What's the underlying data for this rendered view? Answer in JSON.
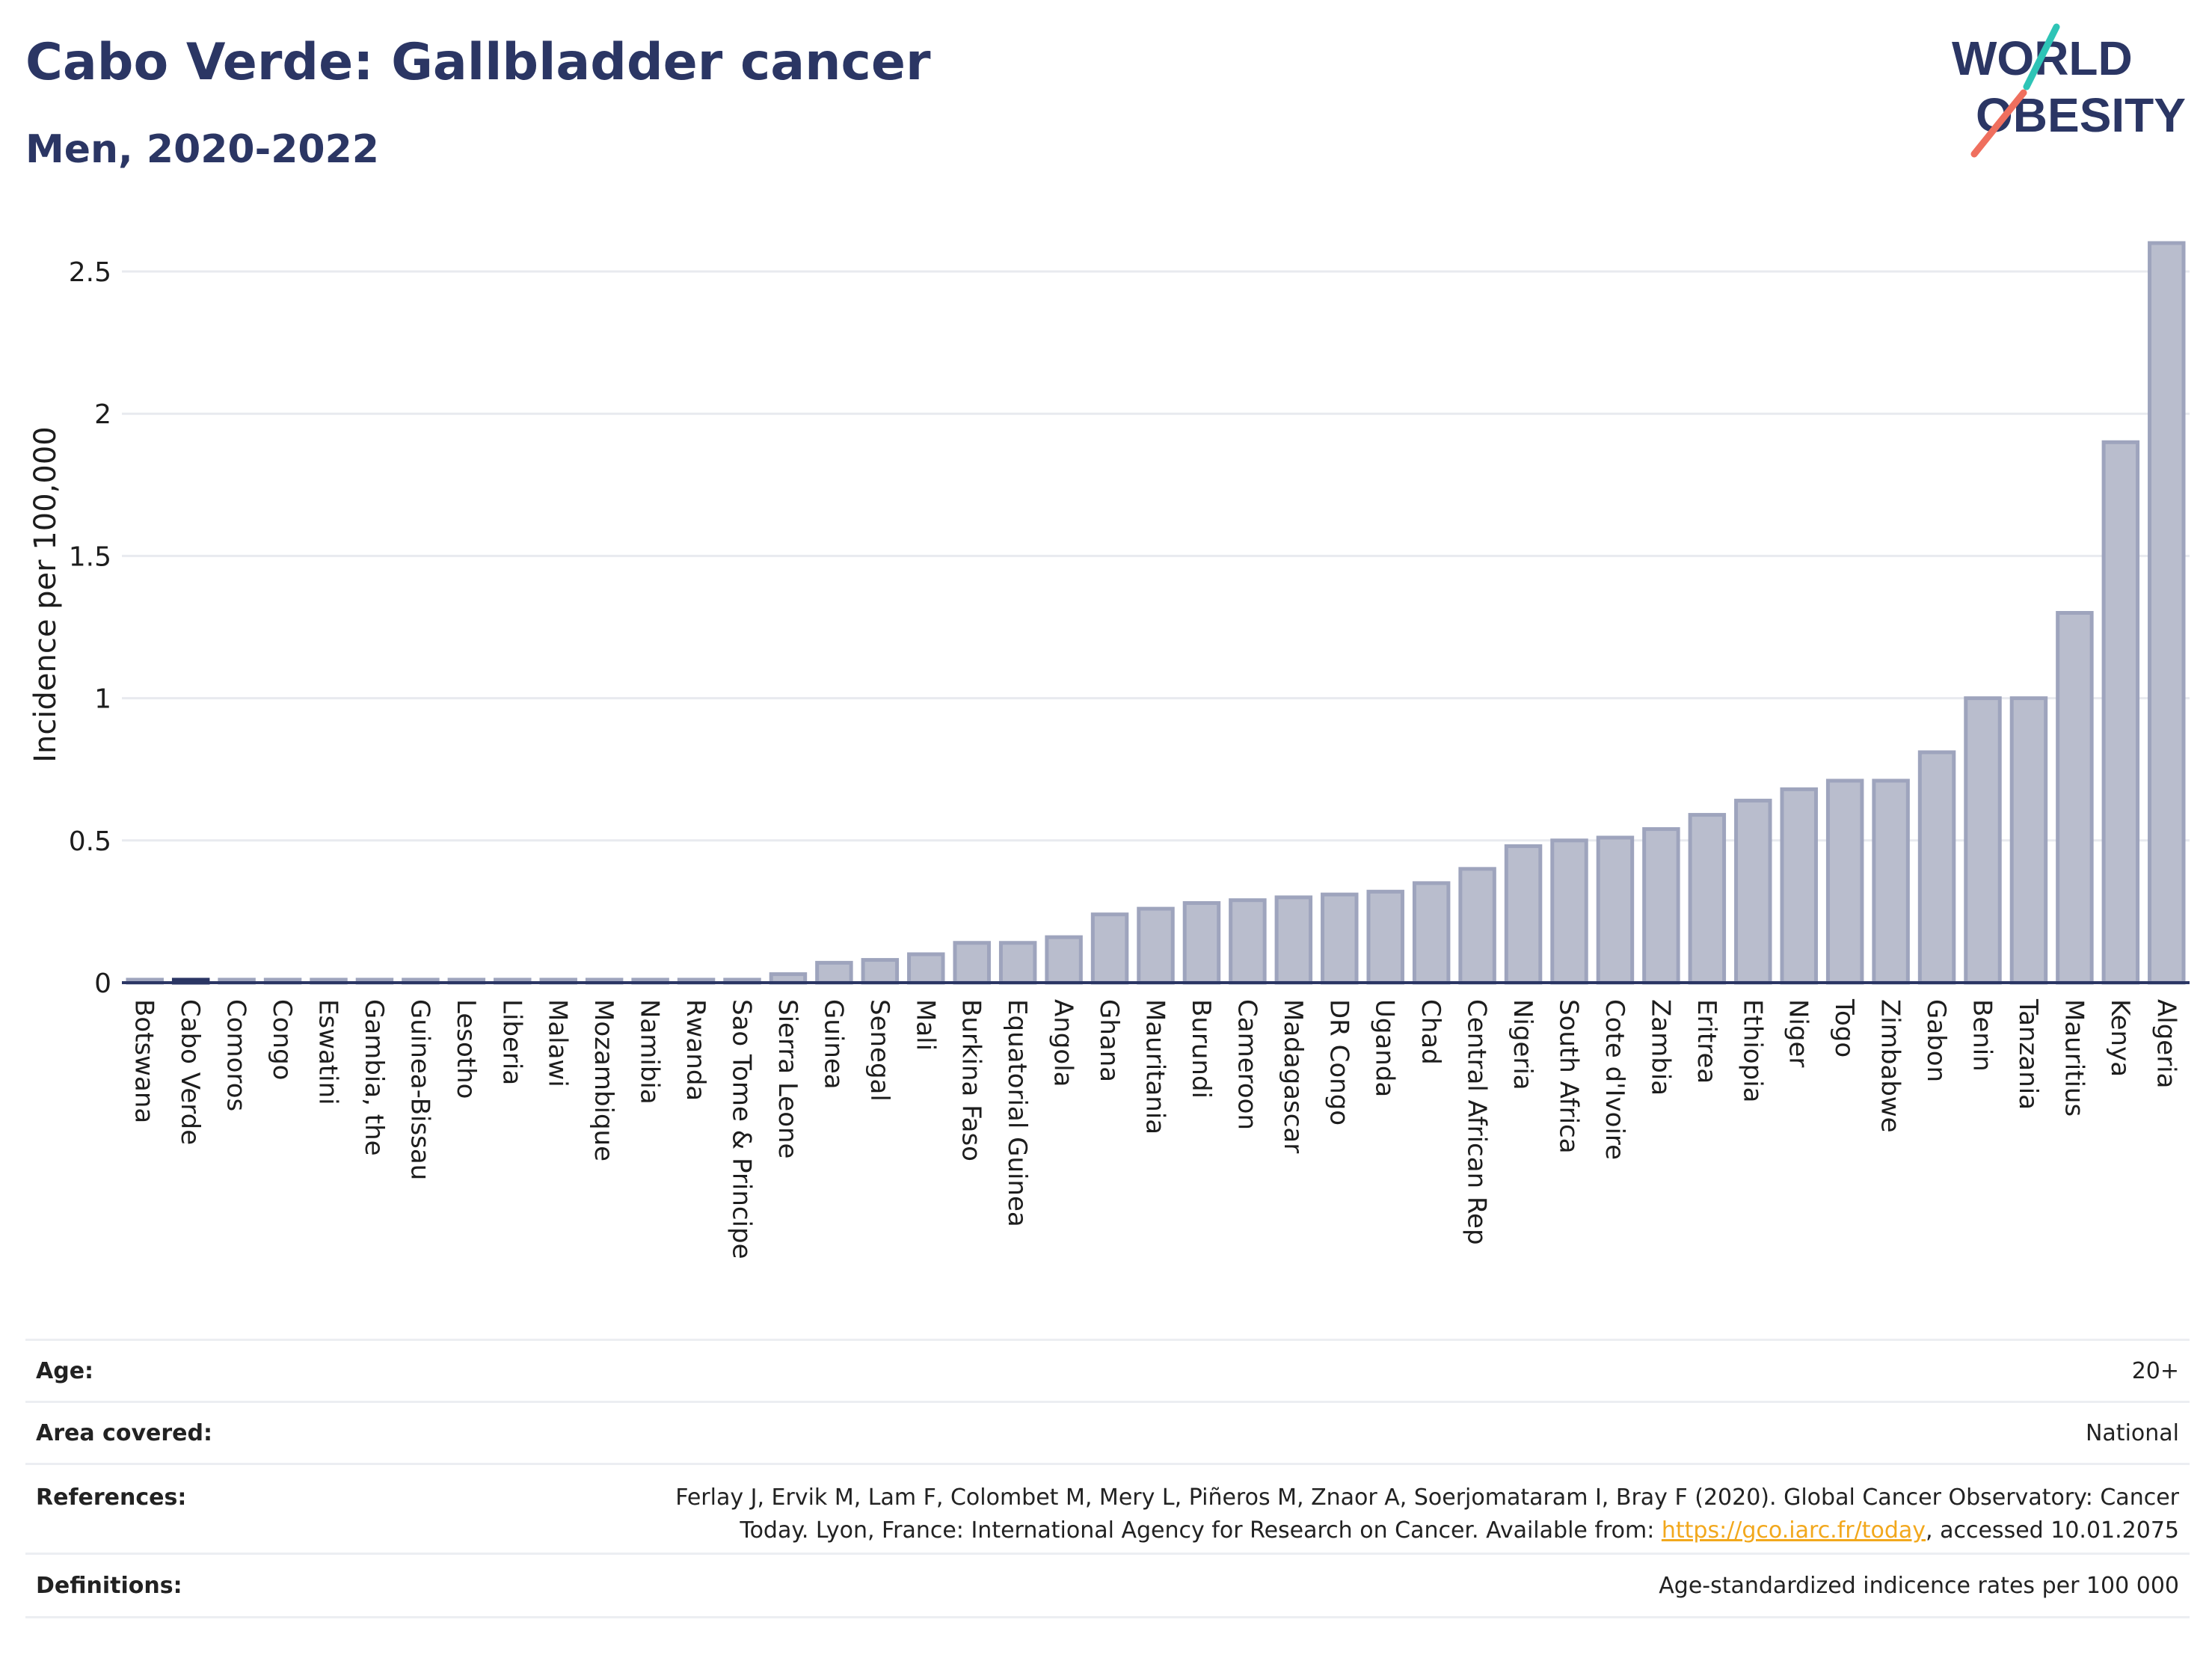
{
  "header": {
    "title": "Cabo Verde: Gallbladder cancer",
    "subtitle": "Men, 2020-2022"
  },
  "logo": {
    "line1": "WORLD",
    "line2": "OBESITY",
    "accent_teal": "#2ec4b6",
    "accent_coral": "#ef6f5e",
    "text_color": "#2b3664"
  },
  "colors": {
    "bar_fill": "#b9bdcd",
    "bar_stroke": "#9ea4bd",
    "highlight_fill": "#2b3664",
    "axis": "#2b3664",
    "grid": "#e8eaef"
  },
  "chart_data": {
    "type": "bar",
    "title": "",
    "xlabel": "",
    "ylabel": "Incidence per 100,000",
    "ylim": [
      0,
      2.6
    ],
    "yticks": [
      0,
      0.5,
      1,
      1.5,
      2,
      2.5
    ],
    "ytick_labels": [
      "0",
      "0.5",
      "1",
      "1.5",
      "2",
      "2.5"
    ],
    "grid": true,
    "highlight": "Cabo Verde",
    "categories": [
      "Botswana",
      "Cabo Verde",
      "Comoros",
      "Congo",
      "Eswatini",
      "Gambia, the",
      "Guinea-Bissau",
      "Lesotho",
      "Liberia",
      "Malawi",
      "Mozambique",
      "Namibia",
      "Rwanda",
      "Sao Tome & Principe",
      "Sierra Leone",
      "Guinea",
      "Senegal",
      "Mali",
      "Burkina Faso",
      "Equatorial Guinea",
      "Angola",
      "Ghana",
      "Mauritania",
      "Burundi",
      "Cameroon",
      "Madagascar",
      "DR Congo",
      "Uganda",
      "Chad",
      "Central African Rep",
      "Nigeria",
      "South Africa",
      "Cote d'Ivoire",
      "Zambia",
      "Eritrea",
      "Ethiopia",
      "Niger",
      "Togo",
      "Zimbabwe",
      "Gabon",
      "Benin",
      "Tanzania",
      "Mauritius",
      "Kenya",
      "Algeria"
    ],
    "values": [
      0.01,
      0.01,
      0.01,
      0.01,
      0.01,
      0.01,
      0.01,
      0.01,
      0.01,
      0.01,
      0.01,
      0.01,
      0.01,
      0.01,
      0.03,
      0.07,
      0.08,
      0.1,
      0.14,
      0.14,
      0.16,
      0.24,
      0.26,
      0.28,
      0.29,
      0.3,
      0.31,
      0.32,
      0.35,
      0.4,
      0.48,
      0.5,
      0.51,
      0.54,
      0.59,
      0.64,
      0.68,
      0.71,
      0.71,
      0.81,
      1.0,
      1.0,
      1.3,
      1.9,
      2.6
    ]
  },
  "info": {
    "age_label": "Age:",
    "age_value": "20+",
    "area_label": "Area covered:",
    "area_value": "National",
    "references_label": "References:",
    "references_text_1": "Ferlay J, Ervik M, Lam F, Colombet M, Mery L, Piñeros M, Znaor A, Soerjomataram I, Bray F (2020). Global Cancer Observatory: Cancer",
    "references_text_2": "Today. Lyon, France: International Agency for Research on Cancer. Available from: ",
    "references_link": "https://gco.iarc.fr/today",
    "references_text_3": ", accessed 10.01.2075",
    "definitions_label": "Definitions:",
    "definitions_value": "Age-standardized indicence rates per 100 000"
  }
}
